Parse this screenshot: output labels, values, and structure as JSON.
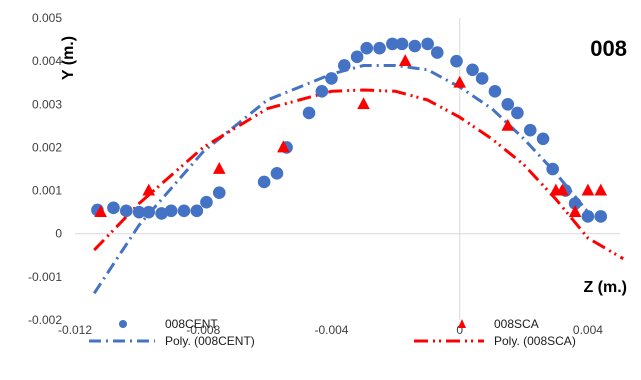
{
  "chart_data": {
    "type": "scatter",
    "label": "008",
    "xlabel": "Z (m.)",
    "ylabel": "Y (m.)",
    "xlim": [
      -0.012,
      0.005
    ],
    "ylim": [
      -0.002,
      0.005
    ],
    "xticks": [
      -0.012,
      -0.008,
      -0.004,
      0,
      0.004
    ],
    "yticks": [
      -0.002,
      -0.001,
      0,
      0.001,
      0.002,
      0.003,
      0.004,
      0.005
    ],
    "xtick_labels": [
      "-0.012",
      "-0.008",
      "-0.004",
      "0",
      "0.004"
    ],
    "ytick_labels": [
      "-0.002",
      "-0.001",
      "0",
      "0.001",
      "0.002",
      "0.003",
      "0.004",
      "0.005"
    ],
    "grid": "vertical line at x=0, horizontal line at y=0",
    "legend_position": "bottom",
    "series": [
      {
        "name": "008CENT",
        "marker": "circle",
        "color": "#4472C4",
        "x": [
          -0.0113,
          -0.0108,
          -0.0104,
          -0.01,
          -0.0097,
          -0.0093,
          -0.009,
          -0.0086,
          -0.0082,
          -0.0079,
          -0.0075,
          -0.0061,
          -0.0057,
          -0.0054,
          -0.0047,
          -0.0043,
          -0.004,
          -0.0036,
          -0.0032,
          -0.0029,
          -0.0025,
          -0.0021,
          -0.0018,
          -0.0014,
          -0.001,
          -0.0007,
          -0.0001,
          0.0004,
          0.0007,
          0.0011,
          0.0015,
          0.0018,
          0.0022,
          0.0026,
          0.0029,
          0.0033,
          0.0036,
          0.004,
          0.0044
        ],
        "y": [
          0.00055,
          0.0006,
          0.00053,
          0.0005,
          0.0005,
          0.00047,
          0.00053,
          0.00053,
          0.00053,
          0.00073,
          0.00095,
          0.0012,
          0.0014,
          0.002,
          0.0028,
          0.0033,
          0.0036,
          0.0039,
          0.0041,
          0.0043,
          0.0043,
          0.0044,
          0.0044,
          0.00435,
          0.0044,
          0.0042,
          0.004,
          0.0038,
          0.0036,
          0.0033,
          0.003,
          0.0028,
          0.0024,
          0.0022,
          0.0015,
          0.001,
          0.0007,
          0.0004,
          0.0004
        ]
      },
      {
        "name": "008SCA",
        "marker": "triangle",
        "color": "#FF0000",
        "x": [
          -0.0112,
          -0.0097,
          -0.0075,
          -0.0055,
          -0.003,
          -0.0017,
          0,
          0.0015,
          0.003,
          0.0032,
          0.0036,
          0.004,
          0.0044
        ],
        "y": [
          0.0005,
          0.001,
          0.0015,
          0.002,
          0.003,
          0.004,
          0.0035,
          0.0025,
          0.001,
          0.001,
          0.0005,
          0.001,
          0.001
        ]
      },
      {
        "name": "Poly. (008CENT)",
        "type": "polynomial-trendline",
        "dash": "dash-dot",
        "color": "#4472C4",
        "x": [
          -0.0114,
          -0.01,
          -0.008,
          -0.006,
          -0.004,
          -0.003,
          -0.002,
          -0.001,
          0,
          0.001,
          0.002,
          0.003,
          0.004
        ],
        "y": [
          -0.00138,
          0.0002,
          0.0019,
          0.0031,
          0.0037,
          0.0039,
          0.0039,
          0.0038,
          0.0034,
          0.0029,
          0.0022,
          0.0014,
          0.0005
        ]
      },
      {
        "name": "Poly. (008SCA)",
        "type": "polynomial-trendline",
        "dash": "long-dash-dot-dot",
        "color": "#FF0000",
        "x": [
          -0.0114,
          -0.01,
          -0.008,
          -0.006,
          -0.004,
          -0.003,
          -0.002,
          -0.001,
          0,
          0.001,
          0.002,
          0.003,
          0.004,
          0.0051
        ],
        "y": [
          -0.00038,
          0.0007,
          0.002,
          0.0029,
          0.0033,
          0.00333,
          0.0033,
          0.0031,
          0.0027,
          0.0022,
          0.0016,
          0.0008,
          -0.0001,
          -0.00058
        ]
      }
    ]
  }
}
